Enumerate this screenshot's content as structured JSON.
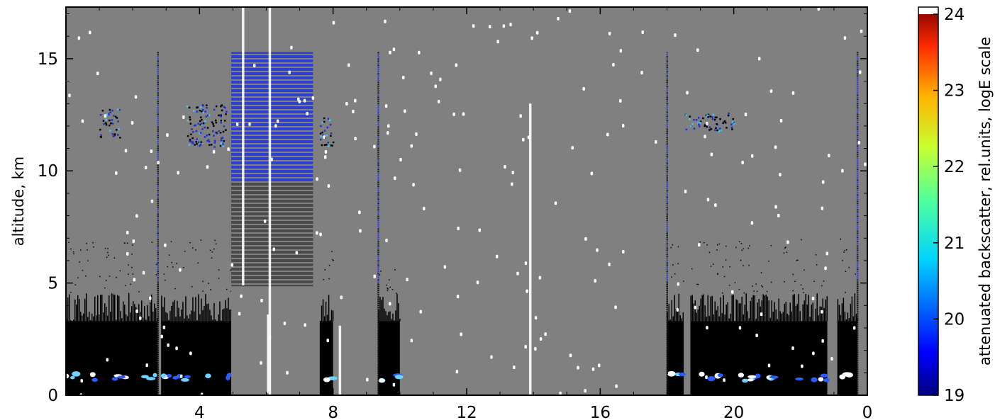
{
  "chart_data": {
    "type": "heatmap",
    "title": "",
    "ylabel": "altitude, km",
    "xlabel": "",
    "x_ticks": [
      4,
      8,
      12,
      16,
      20,
      0
    ],
    "x_tick_hours": [
      4,
      8,
      12,
      16,
      20,
      24
    ],
    "xlim": [
      0,
      24
    ],
    "y_ticks": [
      0,
      5,
      10,
      15
    ],
    "ylim": [
      0,
      17.3
    ],
    "colorbar": {
      "label": "attenuated backscatter, rel.units, logE scale",
      "ticks": [
        19,
        20,
        21,
        22,
        23,
        24
      ],
      "range": [
        19,
        24
      ],
      "colormap": "jet"
    },
    "colors": {
      "background": "#808080",
      "low_signal": "#000000",
      "missing": "#ffffff",
      "weak_cloud": "#2a3bd6"
    },
    "features": {
      "boundary_layer_segments_hours": [
        [
          0,
          2.75
        ],
        [
          2.85,
          4.95
        ],
        [
          7.6,
          8.0
        ],
        [
          9.35,
          10.0
        ],
        [
          18.0,
          18.5
        ],
        [
          18.7,
          22.8
        ],
        [
          23.1,
          23.7
        ]
      ],
      "boundary_layer_top_km": 3.3,
      "low_cloud_altitude_km": 0.8,
      "cirrus_patches": [
        {
          "x": [
            1.0,
            1.6
          ],
          "y": [
            11.5,
            12.8
          ]
        },
        {
          "x": [
            3.6,
            4.8
          ],
          "y": [
            11.1,
            13.0
          ]
        },
        {
          "x": [
            7.6,
            8.0
          ],
          "y": [
            11.1,
            12.4
          ]
        },
        {
          "x": [
            18.5,
            20.0
          ],
          "y": [
            11.8,
            12.6
          ]
        }
      ],
      "blocks": [
        {
          "x": [
            4.95,
            7.4
          ],
          "y": [
            4.85,
            15.3
          ]
        }
      ],
      "vertical_lines_hours": [
        2.75,
        9.35,
        18.0,
        23.7
      ]
    }
  }
}
